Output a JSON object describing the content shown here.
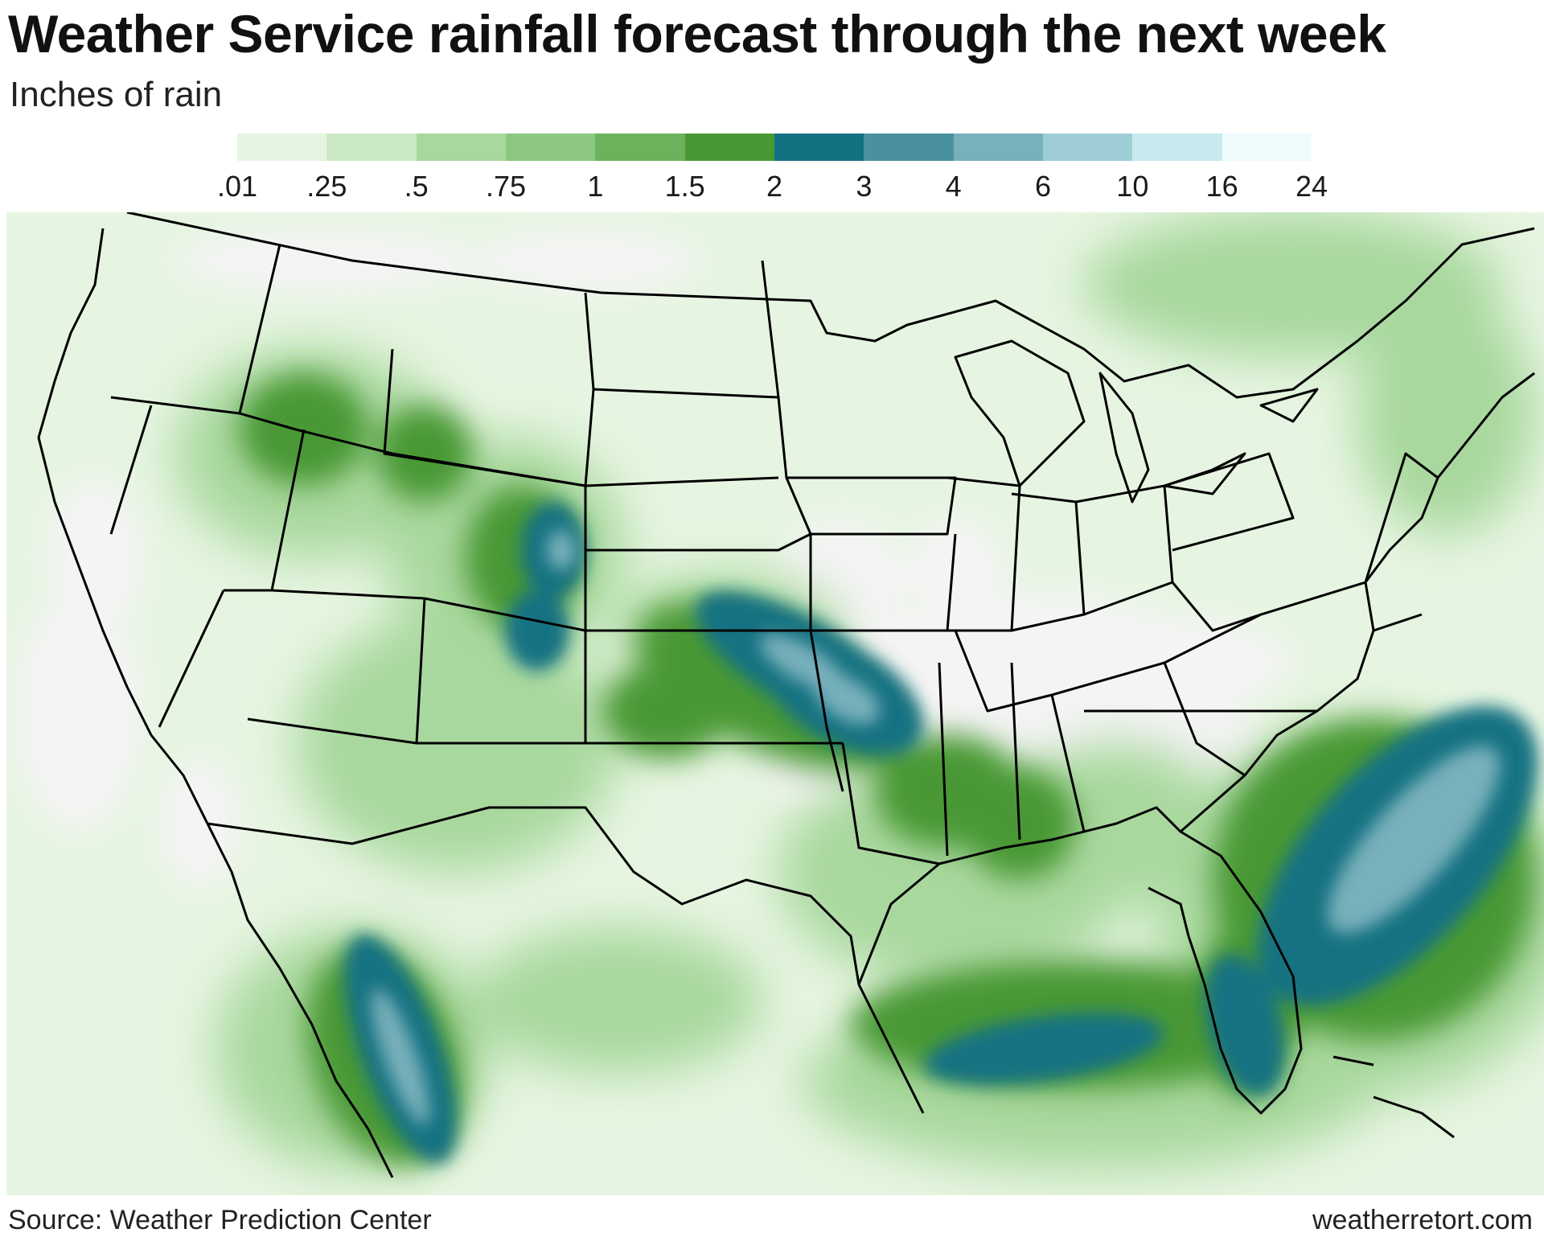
{
  "title": "Weather Service rainfall forecast through the next week",
  "subtitle": "Inches of rain",
  "legend": {
    "bins": [
      {
        "from": ".01",
        "to": ".25",
        "color": "#e6f5e1"
      },
      {
        "from": ".25",
        "to": ".5",
        "color": "#cbe9c4"
      },
      {
        "from": ".5",
        "to": ".75",
        "color": "#a9d89e"
      },
      {
        "from": ".75",
        "to": "1",
        "color": "#8cc87f"
      },
      {
        "from": "1",
        "to": "1.5",
        "color": "#6cb25c"
      },
      {
        "from": "1.5",
        "to": "2",
        "color": "#4a9834"
      },
      {
        "from": "2",
        "to": "3",
        "color": "#137282"
      },
      {
        "from": "3",
        "to": "4",
        "color": "#4a91a0"
      },
      {
        "from": "4",
        "to": "6",
        "color": "#78b0bb"
      },
      {
        "from": "6",
        "to": "10",
        "color": "#9fcdd5"
      },
      {
        "from": "10",
        "to": "16",
        "color": "#c8eaee"
      },
      {
        "from": "16",
        "to": "24",
        "color": "#eefbfc"
      }
    ],
    "tick_labels": [
      ".01",
      ".25",
      ".5",
      ".75",
      "1",
      "1.5",
      "2",
      "3",
      "4",
      "6",
      "10",
      "16",
      "24"
    ]
  },
  "map": {
    "region": "Contiguous United States with parts of Canada, Mexico, Gulf of Mexico and Atlantic",
    "no_rain_color": "#f4f4f4",
    "boundary_color": "#000000",
    "rainfall_areas": [
      {
        "area": "southern Plains (Oklahoma, Arkansas, north Texas)",
        "category": "3-4"
      },
      {
        "area": "Colorado and New Mexico Rockies",
        "category": "2-4"
      },
      {
        "area": "Gulf of Mexico",
        "category": "2-4"
      },
      {
        "area": "Florida peninsula",
        "category": "2-3"
      },
      {
        "area": "Atlantic off the Southeast coast",
        "category": "3-6"
      },
      {
        "area": "Pacific off Baja / western Mexico",
        "category": "3-6"
      },
      {
        "area": "Idaho and western Wyoming",
        "category": "1-2"
      },
      {
        "area": "Lower Mississippi Valley and Deep South",
        "category": "1-2"
      }
    ]
  },
  "footer": {
    "source": "Source: Weather Prediction Center",
    "credit": "weatherretort.com"
  }
}
